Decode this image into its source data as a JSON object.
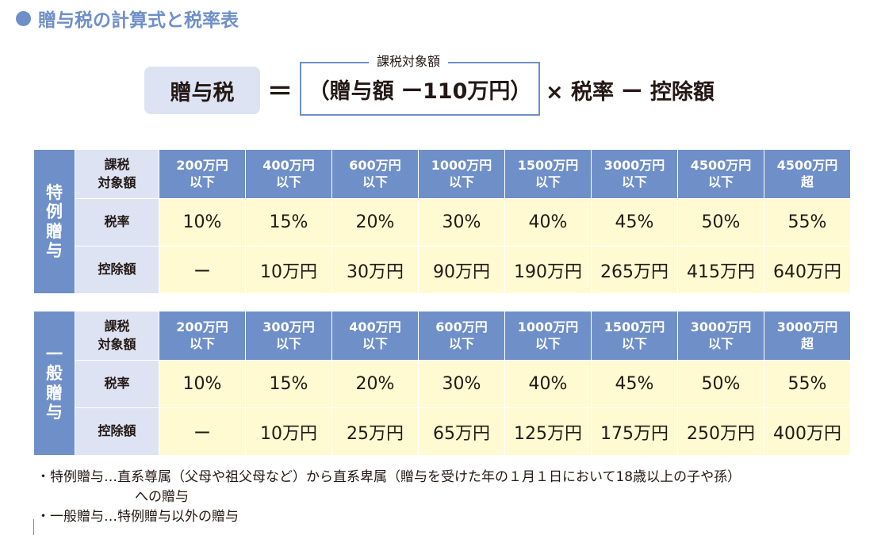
{
  "title": "贈与税の計算式と税率表",
  "formula": {
    "label": "贈与税",
    "equals": "＝",
    "taxable_caption": "課税対象額",
    "taxable_expression": "（贈与額 ー110万円）",
    "rest": "× 税率 ー 控除額"
  },
  "tables": {
    "special": {
      "side_label": "特例贈与",
      "row_labels": {
        "taxable": "課税\n対象額",
        "rate": "税率",
        "deduction": "控除額"
      },
      "brackets": [
        "200万円\n以下",
        "400万円\n以下",
        "600万円\n以下",
        "1000万円\n以下",
        "1500万円\n以下",
        "3000万円\n以下",
        "4500万円\n以下",
        "4500万円\n超"
      ],
      "rates": [
        "10%",
        "15%",
        "20%",
        "30%",
        "40%",
        "45%",
        "50%",
        "55%"
      ],
      "deductions": [
        "ー",
        "10万円",
        "30万円",
        "90万円",
        "190万円",
        "265万円",
        "415万円",
        "640万円"
      ]
    },
    "general": {
      "side_label": "一般贈与",
      "row_labels": {
        "taxable": "課税\n対象額",
        "rate": "税率",
        "deduction": "控除額"
      },
      "brackets": [
        "200万円\n以下",
        "300万円\n以下",
        "400万円\n以下",
        "600万円\n以下",
        "1000万円\n以下",
        "1500万円\n以下",
        "3000万円\n以下",
        "3000万円\n超"
      ],
      "rates": [
        "10%",
        "15%",
        "20%",
        "30%",
        "40%",
        "45%",
        "50%",
        "55%"
      ],
      "deductions": [
        "ー",
        "10万円",
        "25万円",
        "65万円",
        "125万円",
        "175万円",
        "250万円",
        "400万円"
      ]
    }
  },
  "notes": {
    "special_line1": "・特例贈与…直系尊属（父母や祖父母など）から直系卑属（贈与を受けた年の１月１日において18歳以上の子や孫）",
    "special_line2": "への贈与",
    "general_line": "・一般贈与…特例贈与以外の贈与"
  },
  "colors": {
    "accent": "#6f8fc8",
    "label_bg": "#dde3f2",
    "value_bg": "#fffad2"
  }
}
